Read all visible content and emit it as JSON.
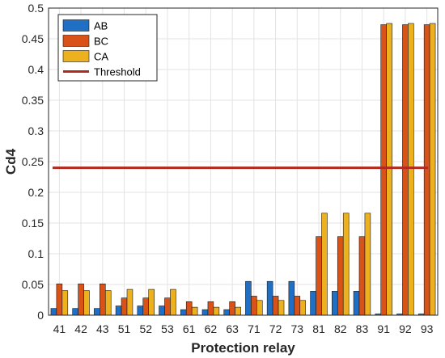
{
  "chart_data": {
    "type": "bar",
    "xlabel": "Protection relay",
    "ylabel": "Cd4",
    "ylim": [
      0,
      0.5
    ],
    "yticks": [
      "0",
      "0.05",
      "0.1",
      "0.15",
      "0.2",
      "0.25",
      "0.3",
      "0.35",
      "0.4",
      "0.45",
      "0.5"
    ],
    "grid": true,
    "legend_position": "top-left",
    "categories": [
      "41",
      "42",
      "43",
      "51",
      "52",
      "53",
      "61",
      "62",
      "63",
      "71",
      "72",
      "73",
      "81",
      "82",
      "83",
      "91",
      "92",
      "93"
    ],
    "series": [
      {
        "name": "AB",
        "color": "#1f6fc4",
        "values": [
          0.011,
          0.011,
          0.011,
          0.015,
          0.015,
          0.015,
          0.009,
          0.009,
          0.009,
          0.055,
          0.055,
          0.055,
          0.039,
          0.039,
          0.039,
          0.002,
          0.002,
          0.002
        ]
      },
      {
        "name": "BC",
        "color": "#d95319",
        "values": [
          0.051,
          0.051,
          0.051,
          0.028,
          0.028,
          0.028,
          0.022,
          0.022,
          0.022,
          0.031,
          0.031,
          0.031,
          0.128,
          0.128,
          0.128,
          0.473,
          0.473,
          0.473
        ]
      },
      {
        "name": "CA",
        "color": "#edb120",
        "values": [
          0.04,
          0.04,
          0.04,
          0.042,
          0.042,
          0.042,
          0.013,
          0.013,
          0.013,
          0.024,
          0.024,
          0.024,
          0.166,
          0.166,
          0.166,
          0.475,
          0.475,
          0.475
        ]
      }
    ],
    "threshold": {
      "name": "Threshold",
      "value": 0.24,
      "color": "#b2291f"
    }
  }
}
